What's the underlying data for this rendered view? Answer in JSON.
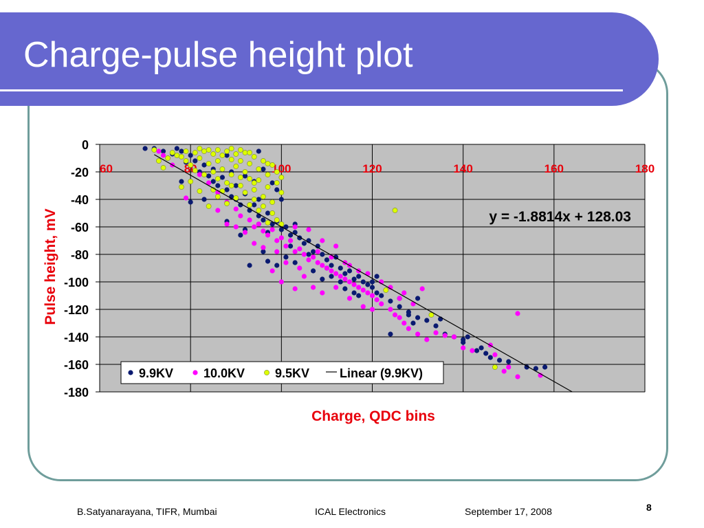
{
  "slide": {
    "title": "Charge-pulse height plot"
  },
  "footer": {
    "author": "B.Satyanarayana, TIFR, Mumbai",
    "event": "ICAL Electronics",
    "date": "September 17, 2008",
    "page_number": "8"
  },
  "colors": {
    "title_bar": "#6667cf",
    "frame": "#6f9d9b",
    "plot_bg": "#c0c0c0",
    "axis_label": "#e8000b",
    "series_9_9": "#0a1a70",
    "series_10_0": "#ff00ff",
    "series_9_5": "#ddff00"
  },
  "chart_data": {
    "type": "scatter",
    "xlabel": "Charge, QDC bins",
    "ylabel": "Pulse height, mV",
    "xlim": [
      60,
      180
    ],
    "ylim": [
      -180,
      0
    ],
    "x_ticks": [
      "60",
      "80",
      "100",
      "120",
      "140",
      "160",
      "180"
    ],
    "y_ticks": [
      "0",
      "-20",
      "-40",
      "-60",
      "-80",
      "-100",
      "-120",
      "-140",
      "-160",
      "-180"
    ],
    "grid": true,
    "legend_position": "bottom-left",
    "trendline": {
      "label": "Linear (9.9KV)",
      "slope": -1.8814,
      "intercept": 128.03,
      "x_range": [
        72,
        164
      ]
    },
    "equation": "y = -1.8814x + 128.03",
    "series": [
      {
        "name": "9.9KV",
        "color": "#0a1a70",
        "points": [
          [
            70,
            -3
          ],
          [
            72,
            -3
          ],
          [
            74,
            -5
          ],
          [
            75,
            -10
          ],
          [
            76,
            -7
          ],
          [
            77,
            -3
          ],
          [
            78,
            -5
          ],
          [
            79,
            -13
          ],
          [
            80,
            -8
          ],
          [
            81,
            -12
          ],
          [
            82,
            -20
          ],
          [
            83,
            -15
          ],
          [
            84,
            -23
          ],
          [
            85,
            -27
          ],
          [
            85,
            -18
          ],
          [
            86,
            -30
          ],
          [
            87,
            -24
          ],
          [
            88,
            -33
          ],
          [
            89,
            -38
          ],
          [
            90,
            -40
          ],
          [
            90,
            -30
          ],
          [
            91,
            -44
          ],
          [
            92,
            -36
          ],
          [
            93,
            -48
          ],
          [
            94,
            -44
          ],
          [
            95,
            -52
          ],
          [
            95,
            -40
          ],
          [
            96,
            -55
          ],
          [
            97,
            -50
          ],
          [
            98,
            -58
          ],
          [
            99,
            -56
          ],
          [
            100,
            -62
          ],
          [
            101,
            -60
          ],
          [
            102,
            -66
          ],
          [
            103,
            -58
          ],
          [
            104,
            -68
          ],
          [
            105,
            -72
          ],
          [
            106,
            -70
          ],
          [
            107,
            -78
          ],
          [
            108,
            -74
          ],
          [
            109,
            -80
          ],
          [
            110,
            -84
          ],
          [
            111,
            -88
          ],
          [
            112,
            -82
          ],
          [
            113,
            -90
          ],
          [
            114,
            -94
          ],
          [
            115,
            -92
          ],
          [
            116,
            -98
          ],
          [
            117,
            -96
          ],
          [
            118,
            -100
          ],
          [
            119,
            -102
          ],
          [
            120,
            -104
          ],
          [
            121,
            -108
          ],
          [
            122,
            -110
          ],
          [
            124,
            -114
          ],
          [
            126,
            -118
          ],
          [
            128,
            -122
          ],
          [
            130,
            -126
          ],
          [
            132,
            -128
          ],
          [
            134,
            -132
          ],
          [
            136,
            -138
          ],
          [
            138,
            -140
          ],
          [
            140,
            -144
          ],
          [
            143,
            -150
          ],
          [
            145,
            -152
          ],
          [
            148,
            -157
          ],
          [
            150,
            -158
          ],
          [
            154,
            -162
          ],
          [
            156,
            -163
          ],
          [
            158,
            -162
          ],
          [
            92,
            -62
          ],
          [
            95,
            -58
          ],
          [
            97,
            -64
          ],
          [
            98,
            -28
          ],
          [
            99,
            -33
          ],
          [
            100,
            -40
          ],
          [
            89,
            -20
          ],
          [
            92,
            -23
          ],
          [
            94,
            -27
          ],
          [
            78,
            -27
          ],
          [
            80,
            -42
          ],
          [
            83,
            -40
          ],
          [
            96,
            -78
          ],
          [
            97,
            -85
          ],
          [
            101,
            -82
          ],
          [
            103,
            -86
          ],
          [
            107,
            -92
          ],
          [
            111,
            -96
          ],
          [
            114,
            -105
          ],
          [
            117,
            -110
          ],
          [
            120,
            -100
          ],
          [
            126,
            -112
          ],
          [
            128,
            -124
          ],
          [
            130,
            -112
          ],
          [
            141,
            -140
          ],
          [
            146,
            -155
          ],
          [
            103,
            -64
          ],
          [
            110,
            -90
          ],
          [
            116,
            -108
          ],
          [
            124,
            -138
          ],
          [
            129,
            -130
          ],
          [
            93,
            -88
          ],
          [
            88,
            -56
          ],
          [
            91,
            -66
          ],
          [
            95,
            -5
          ],
          [
            88,
            -8
          ],
          [
            96,
            -18
          ],
          [
            86,
            -12
          ],
          [
            99,
            -88
          ],
          [
            102,
            -74
          ],
          [
            106,
            -80
          ],
          [
            109,
            -98
          ],
          [
            113,
            -100
          ],
          [
            121,
            -96
          ],
          [
            135,
            -127
          ],
          [
            140,
            -142
          ],
          [
            144,
            -148
          ]
        ]
      },
      {
        "name": "10.0KV",
        "color": "#ff00ff",
        "points": [
          [
            73,
            -5
          ],
          [
            74,
            -8
          ],
          [
            76,
            -15
          ],
          [
            79,
            -39
          ],
          [
            82,
            -22
          ],
          [
            84,
            -28
          ],
          [
            86,
            -35
          ],
          [
            88,
            -42
          ],
          [
            90,
            -47
          ],
          [
            91,
            -52
          ],
          [
            93,
            -55
          ],
          [
            94,
            -60
          ],
          [
            95,
            -58
          ],
          [
            96,
            -63
          ],
          [
            97,
            -66
          ],
          [
            98,
            -62
          ],
          [
            99,
            -70
          ],
          [
            100,
            -68
          ],
          [
            101,
            -74
          ],
          [
            102,
            -70
          ],
          [
            103,
            -78
          ],
          [
            104,
            -76
          ],
          [
            105,
            -80
          ],
          [
            106,
            -84
          ],
          [
            107,
            -82
          ],
          [
            108,
            -86
          ],
          [
            109,
            -88
          ],
          [
            110,
            -90
          ],
          [
            111,
            -92
          ],
          [
            112,
            -94
          ],
          [
            113,
            -96
          ],
          [
            114,
            -98
          ],
          [
            115,
            -100
          ],
          [
            116,
            -102
          ],
          [
            117,
            -104
          ],
          [
            118,
            -106
          ],
          [
            119,
            -108
          ],
          [
            120,
            -110
          ],
          [
            121,
            -113
          ],
          [
            122,
            -116
          ],
          [
            124,
            -120
          ],
          [
            125,
            -124
          ],
          [
            126,
            -126
          ],
          [
            127,
            -130
          ],
          [
            128,
            -134
          ],
          [
            130,
            -138
          ],
          [
            132,
            -142
          ],
          [
            134,
            -137
          ],
          [
            136,
            -139
          ],
          [
            138,
            -140
          ],
          [
            140,
            -148
          ],
          [
            142,
            -150
          ],
          [
            146,
            -146
          ],
          [
            147,
            -153
          ],
          [
            150,
            -162
          ],
          [
            152,
            -169
          ],
          [
            157,
            -168
          ],
          [
            152,
            -123
          ],
          [
            149,
            -165
          ],
          [
            98,
            -92
          ],
          [
            100,
            -100
          ],
          [
            103,
            -105
          ],
          [
            105,
            -96
          ],
          [
            107,
            -104
          ],
          [
            109,
            -108
          ],
          [
            112,
            -104
          ],
          [
            115,
            -112
          ],
          [
            118,
            -118
          ],
          [
            120,
            -120
          ],
          [
            126,
            -112
          ],
          [
            131,
            -105
          ],
          [
            94,
            -72
          ],
          [
            96,
            -75
          ],
          [
            99,
            -78
          ],
          [
            101,
            -86
          ],
          [
            104,
            -90
          ],
          [
            108,
            -78
          ],
          [
            111,
            -82
          ],
          [
            114,
            -86
          ],
          [
            117,
            -92
          ],
          [
            90,
            -60
          ],
          [
            92,
            -64
          ],
          [
            88,
            -58
          ],
          [
            86,
            -48
          ],
          [
            103,
            -60
          ],
          [
            106,
            -62
          ],
          [
            109,
            -70
          ],
          [
            112,
            -74
          ],
          [
            115,
            -88
          ],
          [
            119,
            -94
          ],
          [
            122,
            -100
          ],
          [
            124,
            -104
          ],
          [
            127,
            -108
          ],
          [
            129,
            -116
          ]
        ]
      },
      {
        "name": "9.5KV",
        "color": "#ddff00",
        "points": [
          [
            74,
            -17
          ],
          [
            75,
            -10
          ],
          [
            77,
            -8
          ],
          [
            78,
            -31
          ],
          [
            79,
            -5
          ],
          [
            80,
            -15
          ],
          [
            81,
            -6
          ],
          [
            82,
            -10
          ],
          [
            83,
            -5
          ],
          [
            84,
            -14
          ],
          [
            85,
            -7
          ],
          [
            85,
            -20
          ],
          [
            86,
            -12
          ],
          [
            86,
            -25
          ],
          [
            87,
            -8
          ],
          [
            87,
            -18
          ],
          [
            88,
            -5
          ],
          [
            88,
            -28
          ],
          [
            89,
            -11
          ],
          [
            89,
            -22
          ],
          [
            90,
            -7
          ],
          [
            90,
            -16
          ],
          [
            91,
            -30
          ],
          [
            91,
            -12
          ],
          [
            92,
            -20
          ],
          [
            92,
            -6
          ],
          [
            93,
            -25
          ],
          [
            93,
            -14
          ],
          [
            94,
            -9
          ],
          [
            94,
            -33
          ],
          [
            95,
            -18
          ],
          [
            95,
            -26
          ],
          [
            96,
            -12
          ],
          [
            96,
            -38
          ],
          [
            97,
            -22
          ],
          [
            97,
            -31
          ],
          [
            98,
            -15
          ],
          [
            98,
            -42
          ],
          [
            99,
            -28
          ],
          [
            100,
            -35
          ],
          [
            84,
            -45
          ],
          [
            86,
            -38
          ],
          [
            88,
            -43
          ],
          [
            90,
            -39
          ],
          [
            93,
            -44
          ],
          [
            82,
            -34
          ],
          [
            80,
            -27
          ],
          [
            83,
            -22
          ],
          [
            81,
            -19
          ],
          [
            79,
            -12
          ],
          [
            125,
            -48
          ],
          [
            123,
            -106
          ],
          [
            133,
            -124
          ],
          [
            147,
            -162
          ],
          [
            72,
            -4
          ],
          [
            73,
            -12
          ],
          [
            76,
            -6
          ],
          [
            78,
            -9
          ],
          [
            82,
            -3
          ],
          [
            84,
            -4
          ],
          [
            86,
            -4
          ],
          [
            89,
            -3
          ],
          [
            91,
            -4
          ],
          [
            93,
            -6
          ],
          [
            92,
            -35
          ],
          [
            94,
            -40
          ],
          [
            96,
            -45
          ],
          [
            98,
            -50
          ],
          [
            99,
            -55
          ],
          [
            100,
            -58
          ],
          [
            97,
            -57
          ],
          [
            95,
            -48
          ],
          [
            87,
            -34
          ],
          [
            89,
            -30
          ],
          [
            85,
            -33
          ],
          [
            91,
            -24
          ],
          [
            94,
            -28
          ],
          [
            97,
            -14
          ],
          [
            99,
            -20
          ],
          [
            100,
            -24
          ]
        ]
      }
    ]
  }
}
